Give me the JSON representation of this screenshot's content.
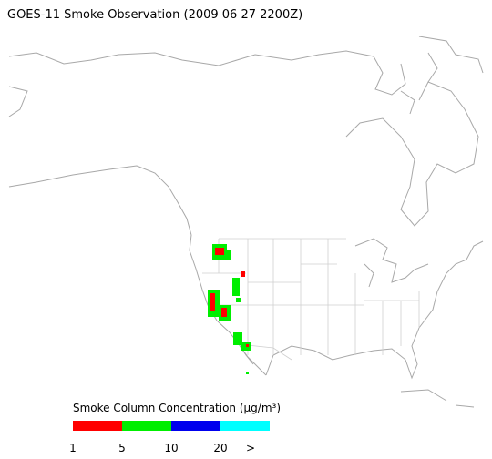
{
  "header": {
    "title": "GOES-11 Smoke Observation (2009 06 27  2200Z)"
  },
  "legend": {
    "title": "Smoke Column Concentration (µg/m³)",
    "colors": [
      "#ff0000",
      "#00ee00",
      "#0000ee",
      "#00ffff"
    ],
    "labels": [
      "1",
      "5",
      "10",
      "20",
      ">"
    ]
  }
}
